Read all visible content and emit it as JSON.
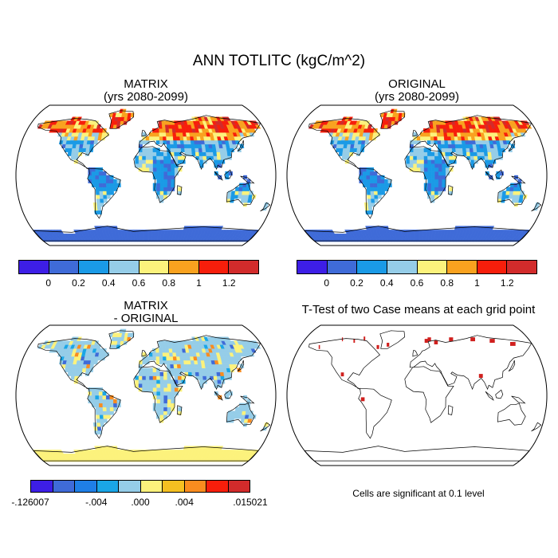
{
  "figure": {
    "title": "ANN TOTLITC (kgC/m^2)"
  },
  "panels": [
    {
      "id": "matrix",
      "title_line1": "MATRIX",
      "title_line2": "(yrs 2080-2099)"
    },
    {
      "id": "original",
      "title_line1": "ORIGINAL",
      "title_line2": "(yrs 2080-2099)"
    },
    {
      "id": "difference",
      "title_line1": "MATRIX",
      "title_line2": "- ORIGINAL"
    },
    {
      "id": "ttest",
      "title_line1": "T-Test of two Case means at each grid point",
      "title_line2": ""
    }
  ],
  "colorbars": {
    "main": {
      "colors": [
        "#3d1ee6",
        "#3f6bd8",
        "#1a9ae6",
        "#95cde8",
        "#fcf27c",
        "#f9a21f",
        "#f71e0b",
        "#d22b2b"
      ],
      "tick_labels": [
        "0",
        "0.2",
        "0.4",
        "0.6",
        "0.8",
        "1",
        "1.2"
      ]
    },
    "difference": {
      "colors": [
        "#3d1ee6",
        "#3f6bd8",
        "#1f7fe6",
        "#1aa6e6",
        "#95cde8",
        "#fcf27c",
        "#f5c021",
        "#f98c1f",
        "#f71e0b",
        "#d22b2b"
      ],
      "tick_labels": [
        "-.126007",
        "-.004",
        ".000",
        ".004",
        ".015021"
      ]
    }
  },
  "ttest_note": "Cells are significant at 0.1 level",
  "map_colors": {
    "ocean": "#ffffff",
    "coast": "#000000",
    "significant": "#d0201e"
  }
}
